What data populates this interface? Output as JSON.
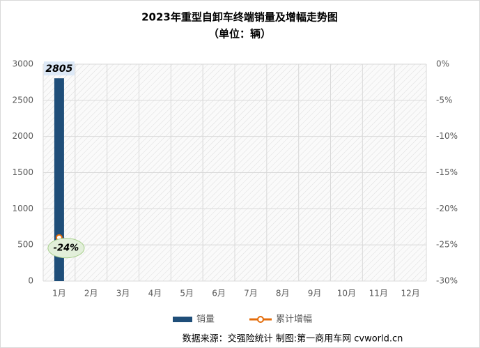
{
  "chart_data": {
    "type": "bar_line",
    "title": "2023年重型自卸车终端销量及增幅走势图",
    "subtitle": "（单位：辆）",
    "categories": [
      "1月",
      "2月",
      "3月",
      "4月",
      "5月",
      "6月",
      "7月",
      "8月",
      "9月",
      "10月",
      "11月",
      "12月"
    ],
    "series": [
      {
        "name": "销量",
        "type": "bar",
        "color": "#1f4e79",
        "values": [
          2805,
          null,
          null,
          null,
          null,
          null,
          null,
          null,
          null,
          null,
          null,
          null
        ]
      },
      {
        "name": "累计增幅",
        "type": "line",
        "axis": "y2",
        "color": "#e46c0a",
        "values": [
          -24,
          null,
          null,
          null,
          null,
          null,
          null,
          null,
          null,
          null,
          null,
          null
        ],
        "value_labels": [
          "-24%",
          null,
          null,
          null,
          null,
          null,
          null,
          null,
          null,
          null,
          null,
          null
        ]
      }
    ],
    "ylim": [
      0,
      3000
    ],
    "yticks": [
      0,
      500,
      1000,
      1500,
      2000,
      2500,
      3000
    ],
    "y2lim": [
      -30,
      0
    ],
    "y2ticks": [
      {
        "value": 0,
        "label": "0%"
      },
      {
        "value": -5,
        "label": "-5%"
      },
      {
        "value": -10,
        "label": "-10%"
      },
      {
        "value": -15,
        "label": "-15%"
      },
      {
        "value": -20,
        "label": "-20%"
      },
      {
        "value": -25,
        "label": "-25%"
      },
      {
        "value": -30,
        "label": "-30%"
      }
    ],
    "grid": true,
    "legend": "bottom",
    "source": "数据来源：交强险统计  制图:第一商用车网 cvworld.cn"
  }
}
